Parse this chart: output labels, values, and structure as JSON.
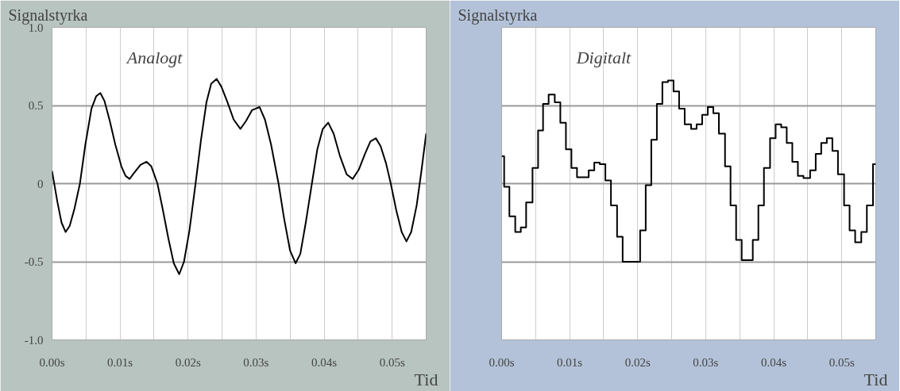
{
  "chart_data": [
    {
      "type": "line",
      "ylabel": "Signalstyrka",
      "xlabel": "Tid",
      "annotations": [
        "Analogt"
      ],
      "xlim": [
        0,
        0.055
      ],
      "ylim": [
        -1,
        1
      ],
      "xticks": [
        {
          "value": 0,
          "label": "0.00s"
        },
        {
          "value": 0.005,
          "label": null
        },
        {
          "value": 0.01,
          "label": "0.01s"
        },
        {
          "value": 0.015,
          "label": null
        },
        {
          "value": 0.02,
          "label": "0.02s"
        },
        {
          "value": 0.025,
          "label": null
        },
        {
          "value": 0.03,
          "label": "0.03s"
        },
        {
          "value": 0.035,
          "label": null
        },
        {
          "value": 0.04,
          "label": "0.04s"
        },
        {
          "value": 0.045,
          "label": null
        },
        {
          "value": 0.05,
          "label": "0.05s"
        }
      ],
      "yticks": [
        {
          "value": -1,
          "label": "-1.0"
        },
        -0.5,
        0,
        0.5,
        {
          "value": 1,
          "label": "1.0"
        }
      ],
      "grid": true,
      "series": [
        {
          "color": "#000000",
          "x": [
            0,
            0.0008,
            0.0014,
            0.002,
            0.0026,
            0.0033,
            0.0041,
            0.0049,
            0.0058,
            0.0065,
            0.0071,
            0.0077,
            0.0085,
            0.0093,
            0.0102,
            0.0108,
            0.0114,
            0.0121,
            0.013,
            0.0139,
            0.0146,
            0.0155,
            0.0163,
            0.0171,
            0.0179,
            0.0187,
            0.0194,
            0.0202,
            0.0211,
            0.0219,
            0.0227,
            0.0234,
            0.0242,
            0.0249,
            0.0258,
            0.0267,
            0.0277,
            0.0285,
            0.0294,
            0.0305,
            0.0313,
            0.0322,
            0.0333,
            0.0341,
            0.035,
            0.0358,
            0.0365,
            0.0373,
            0.0382,
            0.039,
            0.0398,
            0.0406,
            0.0414,
            0.0423,
            0.0433,
            0.0442,
            0.0451,
            0.046,
            0.0468,
            0.0476,
            0.0483,
            0.0491,
            0.0498,
            0.0506,
            0.0514,
            0.0521,
            0.0528,
            0.0536,
            0.0543,
            0.055
          ],
          "values": [
            0.08,
            -0.12,
            -0.25,
            -0.31,
            -0.27,
            -0.16,
            0,
            0.25,
            0.48,
            0.56,
            0.58,
            0.53,
            0.4,
            0.25,
            0.11,
            0.05,
            0.03,
            0.07,
            0.12,
            0.14,
            0.11,
            0,
            -0.17,
            -0.35,
            -0.51,
            -0.58,
            -0.5,
            -0.3,
            0,
            0.28,
            0.52,
            0.64,
            0.67,
            0.62,
            0.52,
            0.41,
            0.35,
            0.4,
            0.47,
            0.49,
            0.41,
            0.25,
            0,
            -0.22,
            -0.43,
            -0.51,
            -0.45,
            -0.25,
            0,
            0.22,
            0.35,
            0.39,
            0.32,
            0.18,
            0.06,
            0.03,
            0.09,
            0.19,
            0.27,
            0.29,
            0.24,
            0.13,
            0,
            -0.17,
            -0.31,
            -0.37,
            -0.31,
            -0.14,
            0.08,
            0.32
          ]
        }
      ]
    },
    {
      "type": "step",
      "ylabel": "Signalstyrka",
      "xlabel": "Tid",
      "annotations": [
        "Digitalt"
      ],
      "xlim": [
        0,
        0.055
      ],
      "ylim": [
        -1,
        1
      ],
      "tick_labels": "x",
      "xticks": [
        {
          "value": 0,
          "label": "0.00s"
        },
        {
          "value": 0.005,
          "label": null
        },
        {
          "value": 0.01,
          "label": "0.01s"
        },
        {
          "value": 0.015,
          "label": null
        },
        {
          "value": 0.02,
          "label": "0.02s"
        },
        {
          "value": 0.025,
          "label": null
        },
        {
          "value": 0.03,
          "label": "0.03s"
        },
        {
          "value": 0.035,
          "label": null
        },
        {
          "value": 0.04,
          "label": "0.04s"
        },
        {
          "value": 0.045,
          "label": null
        },
        {
          "value": 0.05,
          "label": "0.05s"
        }
      ],
      "yticks": [
        -1,
        -0.5,
        0,
        0.5,
        1
      ],
      "grid": true,
      "series": [
        {
          "color": "#000000",
          "x": [
            0,
            0.00037,
            0.00114,
            0.002,
            0.00282,
            0.0036,
            0.00454,
            0.00536,
            0.00609,
            0.00691,
            0.00781,
            0.00863,
            0.00945,
            0.01026,
            0.01108,
            0.0128,
            0.01362,
            0.01443,
            0.01525,
            0.01607,
            0.01697,
            0.01779,
            0.02036,
            0.02118,
            0.022,
            0.02282,
            0.02363,
            0.02445,
            0.02527,
            0.02609,
            0.02691,
            0.02785,
            0.02866,
            0.02948,
            0.0303,
            0.03112,
            0.03194,
            0.03284,
            0.03365,
            0.03447,
            0.03529,
            0.03692,
            0.03774,
            0.03856,
            0.03946,
            0.04028,
            0.0411,
            0.04191,
            0.04273,
            0.04355,
            0.04437,
            0.04535,
            0.04617,
            0.04698,
            0.0478,
            0.04862,
            0.04944,
            0.05034,
            0.05115,
            0.05197,
            0.05287,
            0.05369,
            0.05459,
            0.055
          ],
          "values": [
            0.175,
            -0.02,
            -0.21,
            -0.31,
            -0.28,
            -0.12,
            0.1,
            0.34,
            0.51,
            0.57,
            0.52,
            0.39,
            0.22,
            0.1,
            0.04,
            0.085,
            0.135,
            0.125,
            0.02,
            -0.14,
            -0.34,
            -0.5,
            -0.3,
            -0.01,
            0.28,
            0.51,
            0.65,
            0.66,
            0.59,
            0.48,
            0.38,
            0.35,
            0.38,
            0.44,
            0.49,
            0.45,
            0.32,
            0.11,
            -0.14,
            -0.36,
            -0.49,
            -0.36,
            -0.14,
            0.1,
            0.29,
            0.38,
            0.36,
            0.26,
            0.14,
            0.05,
            0.035,
            0.085,
            0.19,
            0.26,
            0.29,
            0.21,
            0.06,
            -0.14,
            -0.3,
            -0.375,
            -0.31,
            -0.14,
            0.125,
            0.125
          ]
        }
      ]
    }
  ]
}
